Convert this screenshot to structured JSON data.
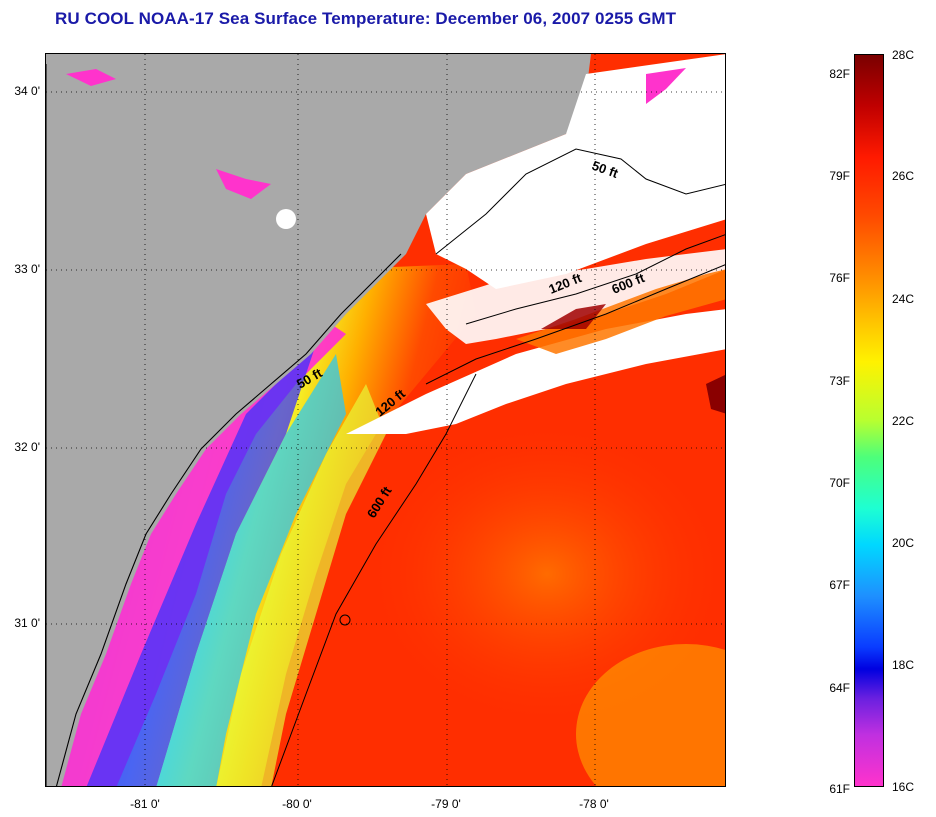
{
  "title": "RU COOL  NOAA-17  Sea Surface Temperature:  December 06, 2007 0255 GMT",
  "map": {
    "lat_labels": [
      "34 0'",
      "33 0'",
      "32 0'",
      "31 0'"
    ],
    "lon_labels": [
      "-81 0'",
      "-80 0'",
      "-79 0'",
      "-78 0'"
    ],
    "contour_labels": [
      "50 ft",
      "120 ft",
      "600 ft",
      "50 ft",
      "120 ft",
      "600 ft"
    ],
    "colors": {
      "land": "#a9a9a9",
      "cloud": "#ffffff",
      "cold": "#ff33cc",
      "warm": "#ff2a00"
    }
  },
  "colorbar": {
    "fahrenheit": [
      "82F",
      "79F",
      "76F",
      "73F",
      "70F",
      "67F",
      "64F",
      "61F"
    ],
    "celsius": [
      "28C",
      "26C",
      "24C",
      "22C",
      "20C",
      "18C",
      "16C"
    ]
  }
}
